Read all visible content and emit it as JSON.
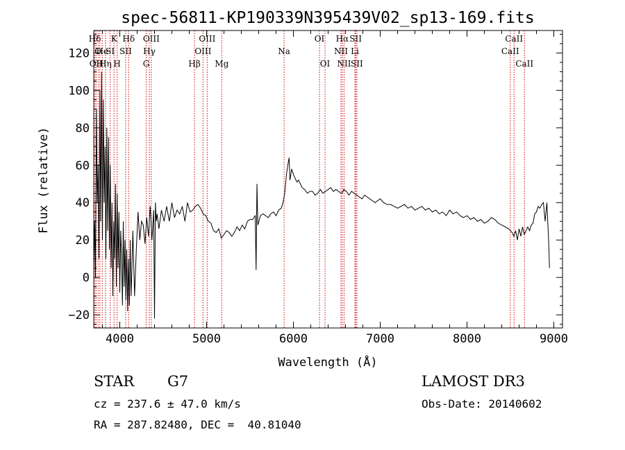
{
  "chart_data": {
    "type": "line",
    "title": "spec-56811-KP190339N395439V02_sp13-169.fits",
    "xlabel": "Wavelength (Å)",
    "ylabel": "Flux (relative)",
    "xlim": [
      3700,
      9100
    ],
    "ylim": [
      -27,
      132
    ],
    "xticks": [
      4000,
      5000,
      6000,
      7000,
      8000,
      9000
    ],
    "yticks": [
      -20,
      0,
      20,
      40,
      60,
      80,
      100,
      120
    ],
    "grid": false,
    "line_color": "#000000",
    "marker_color": "#cc0000",
    "series": [
      {
        "x": [
          3700,
          3710,
          3720,
          3730,
          3740,
          3750,
          3760,
          3770,
          3780,
          3790,
          3800,
          3810,
          3820,
          3830,
          3840,
          3850,
          3860,
          3870,
          3880,
          3890,
          3900,
          3910,
          3920,
          3930,
          3940,
          3950,
          3960,
          3970,
          3980,
          3990,
          4000,
          4010,
          4020,
          4030,
          4040,
          4050,
          4060,
          4070,
          4080,
          4090,
          4100,
          4110,
          4120,
          4130,
          4140,
          4150,
          4170,
          4190,
          4210,
          4230,
          4250,
          4270,
          4290,
          4310,
          4330,
          4350,
          4370,
          4390,
          4400,
          4410,
          4420,
          4430,
          4450,
          4480,
          4510,
          4540,
          4570,
          4600,
          4630,
          4660,
          4690,
          4720,
          4750,
          4780,
          4810,
          4840,
          4870,
          4900,
          4930,
          4960,
          4990,
          5020,
          5050,
          5080,
          5110,
          5140,
          5170,
          5200,
          5230,
          5260,
          5290,
          5320,
          5350,
          5380,
          5410,
          5440,
          5470,
          5500,
          5530,
          5560,
          5570,
          5580,
          5590,
          5620,
          5650,
          5680,
          5710,
          5740,
          5770,
          5800,
          5830,
          5860,
          5880,
          5900,
          5920,
          5935,
          5950,
          5960,
          5980,
          6000,
          6020,
          6040,
          6060,
          6080,
          6100,
          6130,
          6160,
          6190,
          6220,
          6250,
          6280,
          6310,
          6340,
          6370,
          6400,
          6430,
          6460,
          6490,
          6520,
          6550,
          6560,
          6580,
          6610,
          6640,
          6670,
          6700,
          6730,
          6760,
          6790,
          6820,
          6850,
          6880,
          6910,
          6940,
          6970,
          7000,
          7040,
          7080,
          7120,
          7160,
          7200,
          7240,
          7280,
          7320,
          7360,
          7400,
          7440,
          7480,
          7520,
          7560,
          7600,
          7640,
          7680,
          7720,
          7760,
          7800,
          7840,
          7880,
          7920,
          7960,
          8000,
          8040,
          8080,
          8120,
          8160,
          8200,
          8240,
          8280,
          8320,
          8360,
          8400,
          8440,
          8480,
          8520,
          8540,
          8560,
          8580,
          8600,
          8620,
          8640,
          8660,
          8680,
          8700,
          8720,
          8740,
          8760,
          8780,
          8800,
          8820,
          8840,
          8860,
          8880,
          8900,
          8920,
          8940,
          8950
        ],
        "y": [
          5,
          30,
          0,
          90,
          40,
          60,
          10,
          100,
          30,
          110,
          20,
          95,
          40,
          70,
          10,
          80,
          25,
          75,
          15,
          60,
          5,
          40,
          -10,
          30,
          10,
          50,
          -5,
          45,
          5,
          35,
          -8,
          25,
          12,
          -15,
          30,
          -5,
          20,
          -12,
          15,
          -18,
          10,
          -15,
          20,
          -10,
          5,
          25,
          -10,
          15,
          35,
          20,
          30,
          28,
          18,
          32,
          22,
          38,
          20,
          36,
          -22,
          40,
          30,
          34,
          26,
          36,
          30,
          38,
          30,
          40,
          32,
          36,
          34,
          38,
          30,
          40,
          35,
          36,
          38,
          39,
          37,
          34,
          33,
          30,
          29,
          25,
          24,
          26,
          21,
          23,
          25,
          24,
          22,
          24,
          27,
          25,
          28,
          26,
          30,
          31,
          31,
          33,
          4,
          50,
          28,
          33,
          34,
          33,
          32,
          34,
          35,
          33,
          36,
          37,
          40,
          45,
          55,
          60,
          64,
          52,
          58,
          55,
          53,
          51,
          52,
          50,
          48,
          47,
          45,
          46,
          46,
          44,
          45,
          47,
          45,
          46,
          47,
          48,
          46,
          47,
          46,
          45,
          45,
          47,
          46,
          44,
          46,
          45,
          44,
          43,
          42,
          44,
          43,
          42,
          41,
          40,
          41,
          42,
          40,
          39,
          39,
          38,
          37,
          38,
          39,
          37,
          38,
          36,
          37,
          38,
          36,
          37,
          35,
          36,
          34,
          35,
          33,
          36,
          34,
          35,
          33,
          32,
          33,
          31,
          32,
          30,
          31,
          29,
          30,
          32,
          31,
          29,
          28,
          27,
          26,
          24,
          22,
          25,
          20,
          26,
          22,
          27,
          23,
          25,
          27,
          25,
          28,
          29,
          34,
          35,
          38,
          37,
          39,
          40,
          30,
          40,
          20,
          5
        ]
      }
    ],
    "lines": [
      {
        "x": 3713,
        "label": "Hδ",
        "row": 0
      },
      {
        "x": 3727,
        "label": "OII",
        "row": 2
      },
      {
        "x": 3750,
        "label": "O",
        "row": 1
      },
      {
        "x": 3770,
        "label": "H",
        "row": 2
      },
      {
        "x": 3798,
        "label": "He",
        "row": 1
      },
      {
        "x": 3835,
        "label": "Hη",
        "row": 2
      },
      {
        "x": 3889,
        "label": "SI",
        "row": 1
      },
      {
        "x": 3934,
        "label": "K",
        "row": 0
      },
      {
        "x": 3969,
        "label": "H",
        "row": 2
      },
      {
        "x": 4068,
        "label": "SII",
        "row": 1
      },
      {
        "x": 4102,
        "label": "Hδ",
        "row": 0
      },
      {
        "x": 4304,
        "label": "G",
        "row": 2
      },
      {
        "x": 4340,
        "label": "Hγ",
        "row": 1
      },
      {
        "x": 4363,
        "label": "OIII",
        "row": 0
      },
      {
        "x": 4861,
        "label": "Hβ",
        "row": 2
      },
      {
        "x": 4959,
        "label": "OIII",
        "row": 1
      },
      {
        "x": 5007,
        "label": "OIII",
        "row": 0
      },
      {
        "x": 5175,
        "label": "Mg",
        "row": 2
      },
      {
        "x": 5893,
        "label": "Na",
        "row": 1
      },
      {
        "x": 6300,
        "label": "OI",
        "row": 0
      },
      {
        "x": 6364,
        "label": "OI",
        "row": 2
      },
      {
        "x": 6548,
        "label": "NII",
        "row": 1
      },
      {
        "x": 6563,
        "label": "Hα",
        "row": 0
      },
      {
        "x": 6584,
        "label": "NII",
        "row": 2
      },
      {
        "x": 6708,
        "label": "Li",
        "row": 1
      },
      {
        "x": 6717,
        "label": "SII",
        "row": 0
      },
      {
        "x": 6731,
        "label": "SII",
        "row": 2
      },
      {
        "x": 8498,
        "label": "CaII",
        "row": 1
      },
      {
        "x": 8542,
        "label": "CaII",
        "row": 0
      },
      {
        "x": 8662,
        "label": "CaII",
        "row": 2
      }
    ]
  },
  "info": {
    "class": "STAR",
    "subclass": "G7",
    "survey": "LAMOST DR3",
    "cz": "cz = 237.6 ± 47.0 km/s",
    "obs_date": "Obs-Date: 20140602",
    "coords": "RA = 287.82480, DEC =  40.81040"
  }
}
